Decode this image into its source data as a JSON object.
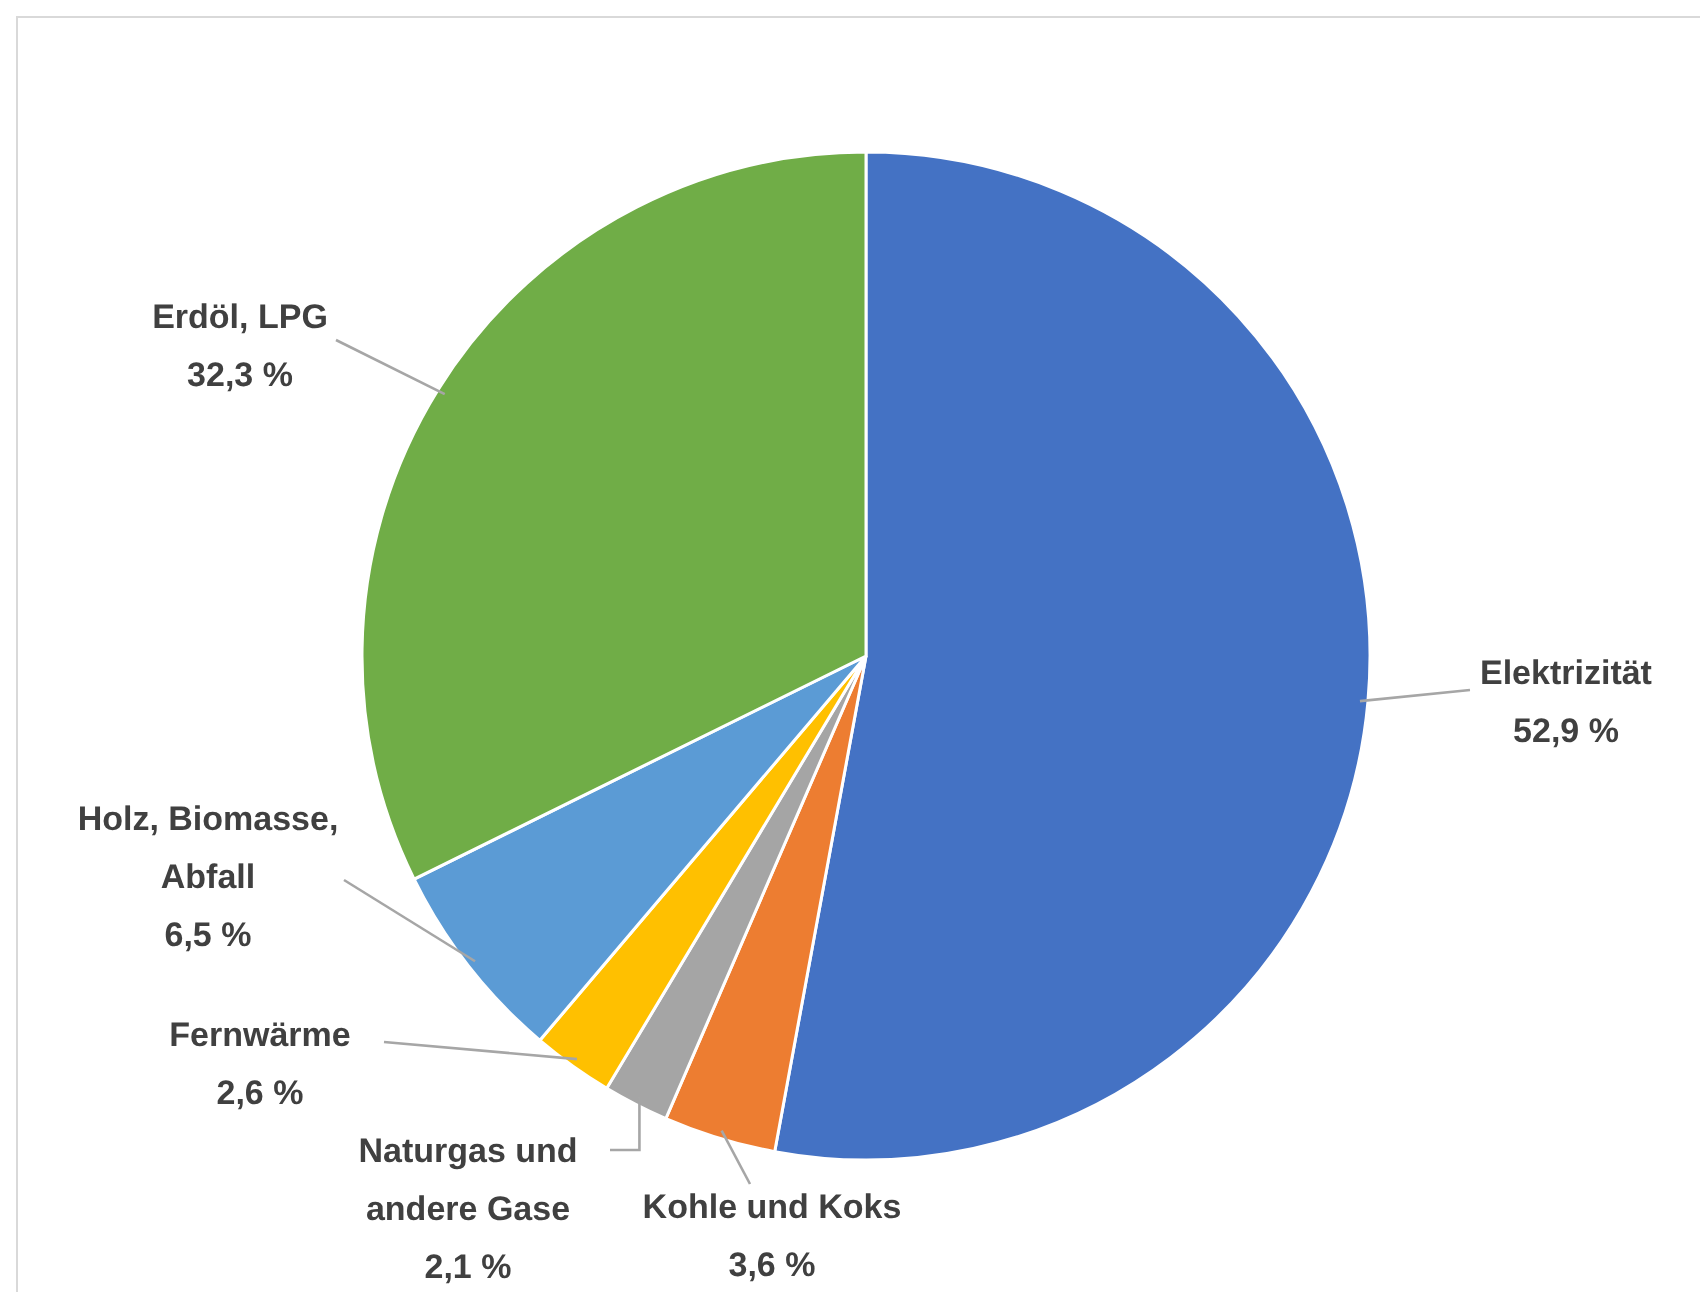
{
  "chart_data": {
    "type": "pie",
    "categories": [
      "Elektrizität",
      "Kohle und Koks",
      "Naturgas und andere Gase",
      "Fernwärme",
      "Holz, Biomasse, Abfall",
      "Erdöl, LPG"
    ],
    "values": [
      52.9,
      3.6,
      2.1,
      2.6,
      6.5,
      32.3
    ],
    "colors": [
      "#4472c4",
      "#ed7d31",
      "#a5a5a5",
      "#ffc000",
      "#5b9bd5",
      "#70ad47"
    ],
    "value_labels": [
      "52,9 %",
      "3,6 %",
      "2,1 %",
      "2,6 %",
      "6,5 %",
      "32,3 %"
    ]
  }
}
